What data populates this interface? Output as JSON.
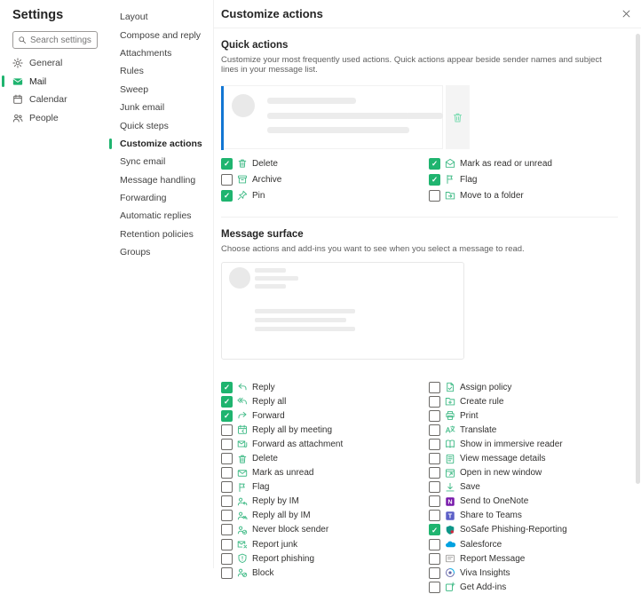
{
  "colors": {
    "accent_green": "#1fb46f",
    "icon_green": "#41bb87",
    "illus_green": "#7fdcb4",
    "highlight_blue": "#1276d3",
    "onenote_purple": "#7719aa",
    "teams_purple": "#5b5fc7",
    "salesforce_blue": "#00a1e0",
    "sosafe_teal": "#0e9688",
    "sosafe_red": "#d6263e"
  },
  "sidebar": {
    "title": "Settings",
    "search_placeholder": "Search settings",
    "search_icon": "search-icon",
    "items": [
      {
        "label": "General",
        "icon": "gear-icon"
      },
      {
        "label": "Mail",
        "icon": "mail-icon",
        "active": true
      },
      {
        "label": "Calendar",
        "icon": "calendar-icon"
      },
      {
        "label": "People",
        "icon": "people-icon"
      }
    ]
  },
  "subnav": {
    "items": [
      {
        "label": "Layout"
      },
      {
        "label": "Compose and reply"
      },
      {
        "label": "Attachments"
      },
      {
        "label": "Rules"
      },
      {
        "label": "Sweep"
      },
      {
        "label": "Junk email"
      },
      {
        "label": "Quick steps"
      },
      {
        "label": "Customize actions",
        "active": true
      },
      {
        "label": "Sync email"
      },
      {
        "label": "Message handling"
      },
      {
        "label": "Forwarding"
      },
      {
        "label": "Automatic replies"
      },
      {
        "label": "Retention policies"
      },
      {
        "label": "Groups"
      }
    ]
  },
  "panel": {
    "title": "Customize actions",
    "close_icon": "close-icon"
  },
  "quick_actions": {
    "heading": "Quick actions",
    "description": "Customize your most frequently used actions. Quick actions appear beside sender names and subject lines in your message list.",
    "illustration": {
      "hover_icons": [
        "flag-icon",
        "mail-read-icon",
        "pin-icon"
      ],
      "side_icon": "trash-icon"
    },
    "items_left": [
      {
        "label": "Delete",
        "icon": "trash-icon",
        "checked": true
      },
      {
        "label": "Archive",
        "icon": "archive-icon",
        "checked": false
      },
      {
        "label": "Pin",
        "icon": "pin-icon",
        "checked": true
      }
    ],
    "items_right": [
      {
        "label": "Mark as read or unread",
        "icon": "mail-read-icon",
        "checked": true
      },
      {
        "label": "Flag",
        "icon": "flag-icon",
        "checked": true
      },
      {
        "label": "Move to a folder",
        "icon": "move-folder-icon",
        "checked": false
      }
    ]
  },
  "message_surface": {
    "heading": "Message surface",
    "description": "Choose actions and add-ins you want to see when you select a message to read.",
    "illustration": {
      "hover_icons": [
        "sosafe-icon",
        "reply-icon",
        "reply-all-icon",
        "forward-icon"
      ]
    },
    "items_left": [
      {
        "label": "Reply",
        "icon": "reply-icon",
        "checked": true
      },
      {
        "label": "Reply all",
        "icon": "reply-all-icon",
        "checked": true
      },
      {
        "label": "Forward",
        "icon": "forward-icon",
        "checked": true
      },
      {
        "label": "Reply all by meeting",
        "icon": "meeting-icon",
        "checked": false
      },
      {
        "label": "Forward as attachment",
        "icon": "attach-icon",
        "checked": false
      },
      {
        "label": "Delete",
        "icon": "trash-icon",
        "checked": false
      },
      {
        "label": "Mark as unread",
        "icon": "mark-unread-icon",
        "checked": false
      },
      {
        "label": "Flag",
        "icon": "flag-icon",
        "checked": false
      },
      {
        "label": "Reply by IM",
        "icon": "im-icon",
        "checked": false
      },
      {
        "label": "Reply all by IM",
        "icon": "im-all-icon",
        "checked": false
      },
      {
        "label": "Never block sender",
        "icon": "never-block-icon",
        "checked": false
      },
      {
        "label": "Report junk",
        "icon": "report-junk-icon",
        "checked": false
      },
      {
        "label": "Report phishing",
        "icon": "report-phishing-icon",
        "checked": false
      },
      {
        "label": "Block",
        "icon": "block-icon",
        "checked": false
      }
    ],
    "items_right": [
      {
        "label": "Assign policy",
        "icon": "assign-policy-icon",
        "checked": false
      },
      {
        "label": "Create rule",
        "icon": "create-rule-icon",
        "checked": false
      },
      {
        "label": "Print",
        "icon": "print-icon",
        "checked": false
      },
      {
        "label": "Translate",
        "icon": "translate-icon",
        "checked": false
      },
      {
        "label": "Show in immersive reader",
        "icon": "reader-icon",
        "checked": false
      },
      {
        "label": "View message details",
        "icon": "details-icon",
        "checked": false
      },
      {
        "label": "Open in new window",
        "icon": "window-icon",
        "checked": false
      },
      {
        "label": "Save",
        "icon": "save-icon",
        "checked": false
      },
      {
        "label": "Send to OneNote",
        "icon": "onenote-icon",
        "checked": false
      },
      {
        "label": "Share to Teams",
        "icon": "teams-icon",
        "checked": false
      },
      {
        "label": "SoSafe Phishing-Reporting",
        "icon": "sosafe-icon",
        "checked": true
      },
      {
        "label": "Salesforce",
        "icon": "salesforce-icon",
        "checked": false
      },
      {
        "label": "Report Message",
        "icon": "report-message-icon",
        "checked": false
      },
      {
        "label": "Viva Insights",
        "icon": "viva-icon",
        "checked": false
      },
      {
        "label": "Get Add-ins",
        "icon": "addins-icon",
        "checked": false
      }
    ]
  }
}
